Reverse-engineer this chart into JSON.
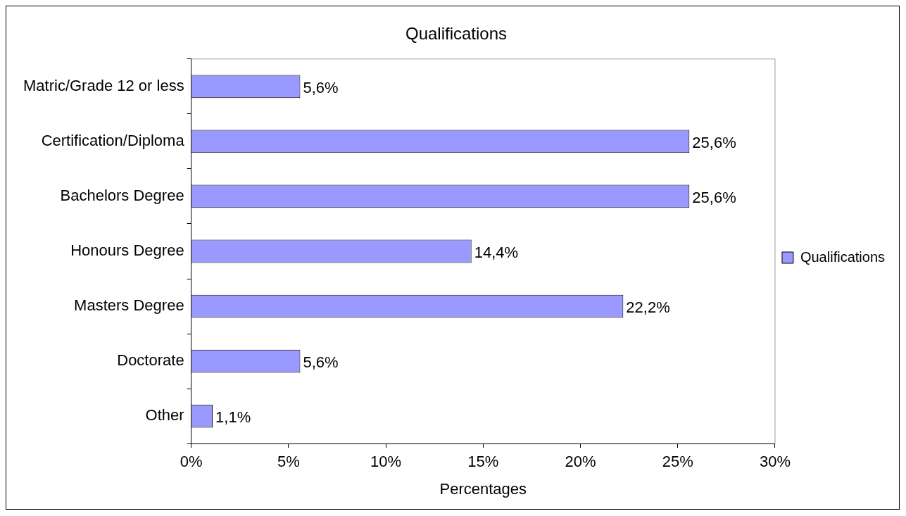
{
  "chart_data": {
    "type": "bar",
    "orientation": "horizontal",
    "title": "Qualifications",
    "xlabel": "Percentages",
    "categories": [
      "Matric/Grade 12 or less",
      "Certification/Diploma",
      "Bachelors Degree",
      "Honours Degree",
      "Masters Degree",
      "Doctorate",
      "Other"
    ],
    "series": [
      {
        "name": "Qualifications",
        "color": "#9999ff",
        "values": [
          5.6,
          25.6,
          25.6,
          14.4,
          22.2,
          5.6,
          1.1
        ],
        "value_labels": [
          "5,6%",
          "25,6%",
          "25,6%",
          "14,4%",
          "22,2%",
          "5,6%",
          "1,1%"
        ]
      }
    ],
    "xlim": [
      0,
      30
    ],
    "xticks": [
      {
        "value": 0,
        "label": "0%"
      },
      {
        "value": 5,
        "label": "5%"
      },
      {
        "value": 10,
        "label": "10%"
      },
      {
        "value": 15,
        "label": "15%"
      },
      {
        "value": 20,
        "label": "20%"
      },
      {
        "value": 25,
        "label": "25%"
      },
      {
        "value": 30,
        "label": "30%"
      }
    ],
    "grid": false,
    "legend": "right"
  }
}
